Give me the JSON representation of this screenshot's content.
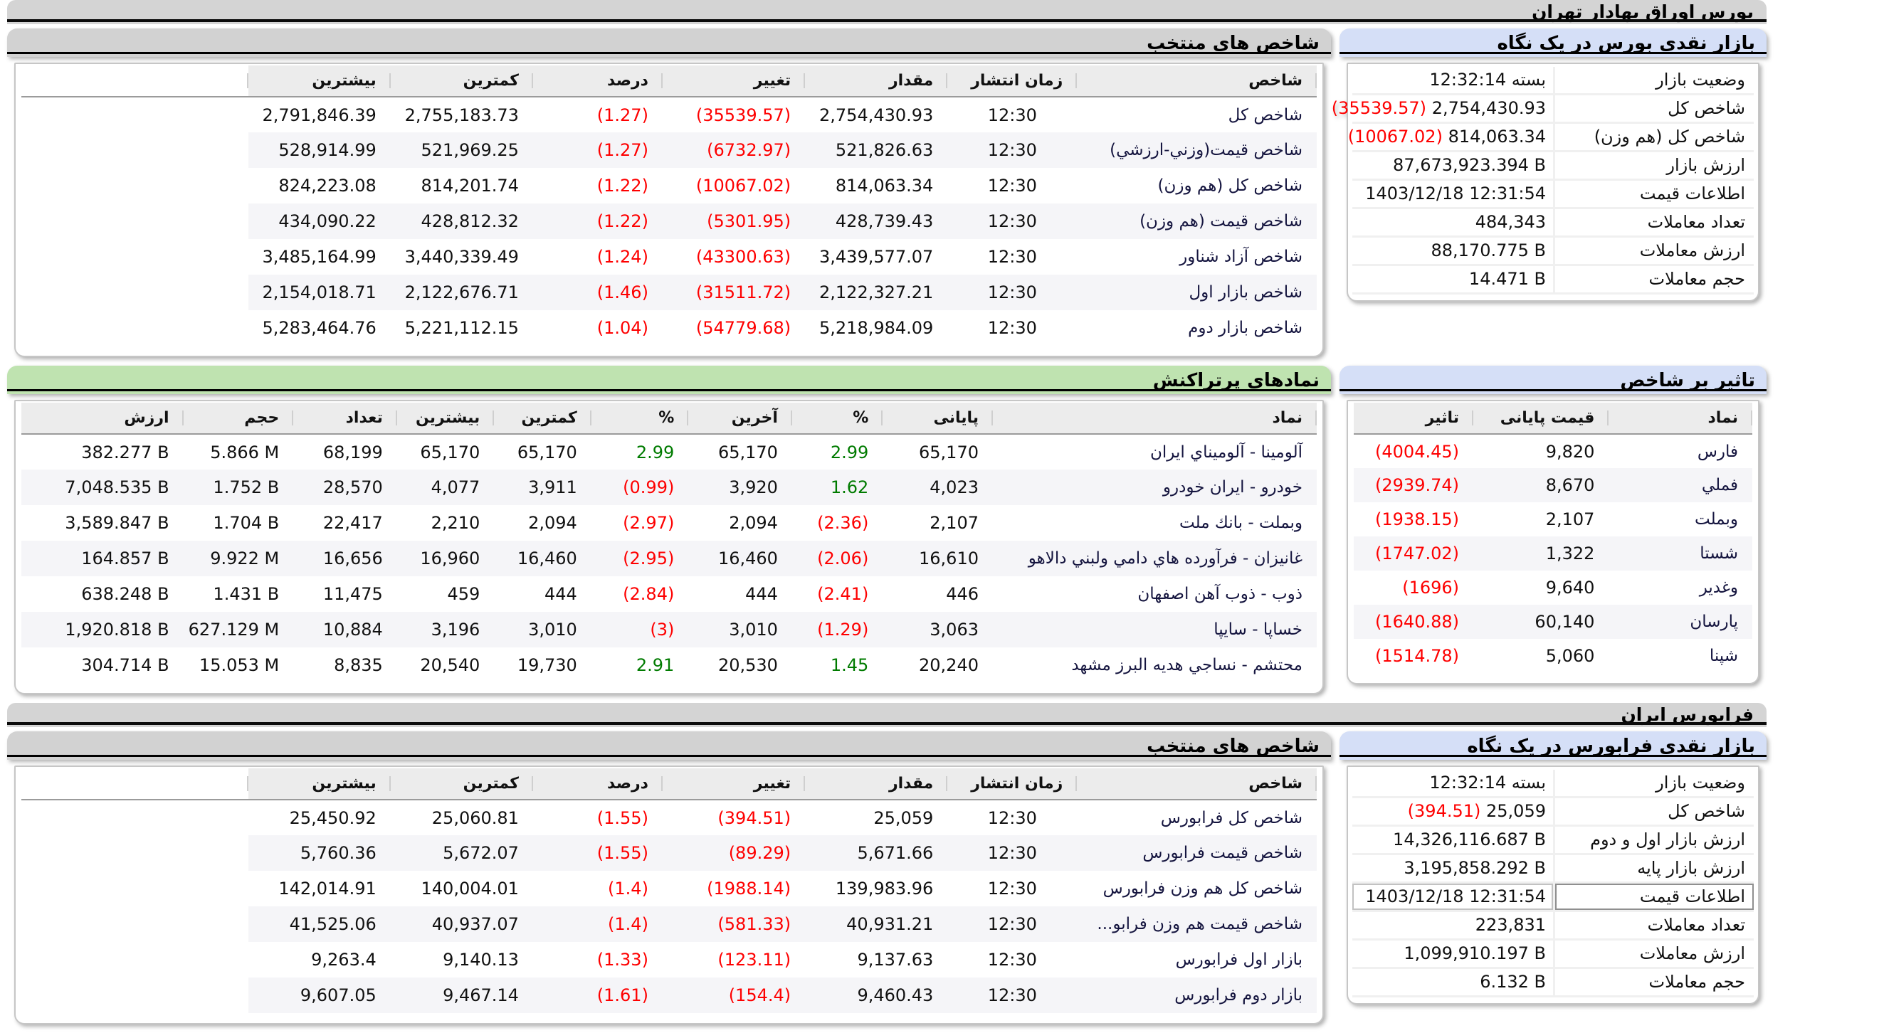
{
  "page": {
    "tse_band": "بورس اوراق بهادار تهران",
    "ifb_band": "فرابورس ایران"
  },
  "tse": {
    "glance": {
      "title": "بازار نقدی بورس در یک نگاه",
      "rows": [
        {
          "label": "وضعیت بازار",
          "value": "بسته 12:32:14",
          "rtl": true
        },
        {
          "label": "شاخص کل",
          "value": "2,754,430.93",
          "change": "(35539.57)"
        },
        {
          "label": "شاخص کل (هم وزن)",
          "value": "814,063.34",
          "change": "(10067.02)"
        },
        {
          "label": "ارزش بازار",
          "value": "87,673,923.394 B"
        },
        {
          "label": "اطلاعات قیمت",
          "value": "1403/12/18 12:31:54"
        },
        {
          "label": "تعداد معاملات",
          "value": "484,343"
        },
        {
          "label": "ارزش معاملات",
          "value": "88,170.775 B"
        },
        {
          "label": "حجم معاملات",
          "value": "14.471 B"
        }
      ]
    },
    "indices": {
      "title": "شاخص های منتخب",
      "headers": [
        "شاخص",
        "زمان انتشار",
        "مقدار",
        "تغییر",
        "درصد",
        "کمترین",
        "بیشترین"
      ],
      "rows": [
        [
          "شاخص کل",
          "12:30",
          "2,754,430.93",
          "(35539.57)",
          "(1.27)",
          "2,755,183.73",
          "2,791,846.39"
        ],
        [
          "شاخص قیمت(وزني-ارزشي)",
          "12:30",
          "521,826.63",
          "(6732.97)",
          "(1.27)",
          "521,969.25",
          "528,914.99"
        ],
        [
          "شاخص کل (هم وزن)",
          "12:30",
          "814,063.34",
          "(10067.02)",
          "(1.22)",
          "814,201.74",
          "824,223.08"
        ],
        [
          "شاخص قیمت (هم وزن)",
          "12:30",
          "428,739.43",
          "(5301.95)",
          "(1.22)",
          "428,812.32",
          "434,090.22"
        ],
        [
          "شاخص آزاد شناور",
          "12:30",
          "3,439,577.07",
          "(43300.63)",
          "(1.24)",
          "3,440,339.49",
          "3,485,164.99"
        ],
        [
          "شاخص بازار اول",
          "12:30",
          "2,122,327.21",
          "(31511.72)",
          "(1.46)",
          "2,122,676.71",
          "2,154,018.71"
        ],
        [
          "شاخص بازار دوم",
          "12:30",
          "5,218,984.09",
          "(54779.68)",
          "(1.04)",
          "5,221,112.15",
          "5,283,464.76"
        ]
      ]
    },
    "impact": {
      "title": "تاثیر بر شاخص",
      "headers": [
        "نماد",
        "قیمت پایانی",
        "تاثیر"
      ],
      "rows": [
        [
          "فارس",
          "9,820",
          "(4004.45)"
        ],
        [
          "فملي",
          "8,670",
          "(2939.74)"
        ],
        [
          "وبملت",
          "2,107",
          "(1938.15)"
        ],
        [
          "شستا",
          "1,322",
          "(1747.02)"
        ],
        [
          "وغدیر",
          "9,640",
          "(1696)"
        ],
        [
          "پارسان",
          "60,140",
          "(1640.88)"
        ],
        [
          "شپنا",
          "5,060",
          "(1514.78)"
        ]
      ]
    },
    "active": {
      "title": "نمادهای پرتراکنش",
      "headers": [
        "نماد",
        "پایانی",
        "%",
        "آخرین",
        "%",
        "کمترین",
        "بیشترین",
        "تعداد",
        "حجم",
        "ارزش"
      ],
      "rows": [
        [
          "آلومینا - آلومیناي ایران",
          "65,170",
          "2.99",
          "65,170",
          "2.99",
          "65,170",
          "65,170",
          "68,199",
          "5.866 M",
          "382.277 B"
        ],
        [
          "خودرو - ایران خودرو",
          "4,023",
          "1.62",
          "3,920",
          "(0.99)",
          "3,911",
          "4,077",
          "28,570",
          "1.752 B",
          "7,048.535 B"
        ],
        [
          "وبملت - بانك ملت",
          "2,107",
          "(2.36)",
          "2,094",
          "(2.97)",
          "2,094",
          "2,210",
          "22,417",
          "1.704 B",
          "3,589.847 B"
        ],
        [
          "غانیزان - فرآورده هاي دامي ولبني دالاهو",
          "16,610",
          "(2.06)",
          "16,460",
          "(2.95)",
          "16,460",
          "16,960",
          "16,656",
          "9.922 M",
          "164.857 B"
        ],
        [
          "ذوب - ذوب آهن اصفهان",
          "446",
          "(2.41)",
          "444",
          "(2.84)",
          "444",
          "459",
          "11,475",
          "1.431 B",
          "638.248 B"
        ],
        [
          "خساپا - سایپا",
          "3,063",
          "(1.29)",
          "3,010",
          "(3)",
          "3,010",
          "3,196",
          "10,884",
          "627.129 M",
          "1,920.818 B"
        ],
        [
          "محتشم - نساجي هدیه البرز مشهد",
          "20,240",
          "1.45",
          "20,530",
          "2.91",
          "19,730",
          "20,540",
          "8,835",
          "15.053 M",
          "304.714 B"
        ]
      ]
    }
  },
  "ifb": {
    "glance": {
      "title": "بازار نقدی فرابورس در یک نگاه",
      "rows": [
        {
          "label": "وضعیت بازار",
          "value": "بسته 12:32:14",
          "rtl": true
        },
        {
          "label": "شاخص کل",
          "value": "25,059",
          "change": "(394.51)"
        },
        {
          "label": "ارزش بازار اول و دوم",
          "value": "14,326,116.687 B"
        },
        {
          "label": "ارزش بازار پایه",
          "value": "3,195,858.292 B"
        },
        {
          "label": "اطلاعات قیمت",
          "value": "1403/12/18 12:31:54",
          "selected": true
        },
        {
          "label": "تعداد معاملات",
          "value": "223,831"
        },
        {
          "label": "ارزش معاملات",
          "value": "1,099,910.197 B"
        },
        {
          "label": "حجم معاملات",
          "value": "6.132 B"
        }
      ]
    },
    "indices": {
      "title": "شاخص های منتخب",
      "headers": [
        "شاخص",
        "زمان انتشار",
        "مقدار",
        "تغییر",
        "درصد",
        "کمترین",
        "بیشترین"
      ],
      "rows": [
        [
          "شاخص کل فرابورس",
          "12:30",
          "25,059",
          "(394.51)",
          "(1.55)",
          "25,060.81",
          "25,450.92"
        ],
        [
          "شاخص قیمت فرابورس",
          "12:30",
          "5,671.66",
          "(89.29)",
          "(1.55)",
          "5,672.07",
          "5,760.36"
        ],
        [
          "شاخص کل هم وزن فرابورس",
          "12:30",
          "139,983.96",
          "(1988.14)",
          "(1.4)",
          "140,004.01",
          "142,014.91"
        ],
        [
          "شاخص قیمت هم وزن فرابو...",
          "12:30",
          "40,931.21",
          "(581.33)",
          "(1.4)",
          "40,937.07",
          "41,525.06"
        ],
        [
          "بازار اول فرابورس",
          "12:30",
          "9,137.63",
          "(123.11)",
          "(1.33)",
          "9,140.13",
          "9,263.4"
        ],
        [
          "بازار دوم فرابورس",
          "12:30",
          "9,460.43",
          "(154.4)",
          "(1.61)",
          "9,467.14",
          "9,607.05"
        ]
      ]
    }
  },
  "colors": {
    "negative": "#fe0000",
    "positive": "#007b00",
    "band_bg": "#d4d4d4",
    "glance_title_bg": "#d5dff7",
    "active_title_bg": "#bfe3b0",
    "header_bg": "#ececec"
  }
}
